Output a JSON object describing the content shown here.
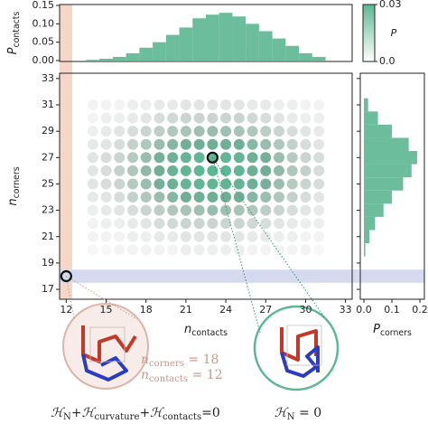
{
  "chart_data": [
    {
      "type": "histogram",
      "ylabel": {
        "symbol": "P",
        "sub": "contacts"
      },
      "bins": [
        13.5,
        14.5,
        15.5,
        16.5,
        17.5,
        18.5,
        19.5,
        20.5,
        21.5,
        22.5,
        23.5,
        24.5,
        25.5,
        26.5,
        27.5,
        28.5,
        29.5,
        30.5,
        31.5
      ],
      "values": [
        0.002,
        0.005,
        0.01,
        0.02,
        0.035,
        0.05,
        0.07,
        0.09,
        0.115,
        0.125,
        0.13,
        0.12,
        0.1,
        0.08,
        0.06,
        0.04,
        0.02,
        0.01
      ],
      "color": "#6cbd9c",
      "xlim": [
        11.5,
        33.5
      ],
      "ylim": [
        0,
        0.15
      ],
      "yticks": [
        {
          "value": 0,
          "label": "0.00"
        },
        0.05,
        {
          "value": 0.1,
          "label": "0.10"
        },
        0.15
      ]
    },
    {
      "type": "heatmap",
      "x": [
        14,
        15,
        16,
        17,
        18,
        19,
        20,
        21,
        22,
        23,
        24,
        25,
        26,
        27,
        28,
        29,
        30,
        31
      ],
      "y": [
        20,
        21,
        22,
        23,
        24,
        25,
        26,
        27,
        28,
        29,
        30,
        31
      ],
      "z": [
        [
          0.0,
          0.0,
          0.001,
          0.001,
          0.001,
          0.001,
          0.001,
          0.002,
          0.002,
          0.002,
          0.002,
          0.002,
          0.001,
          0.001,
          0.001,
          0.001,
          0.001,
          0.0
        ],
        [
          0.001,
          0.001,
          0.001,
          0.002,
          0.002,
          0.003,
          0.003,
          0.004,
          0.004,
          0.004,
          0.004,
          0.004,
          0.003,
          0.003,
          0.002,
          0.002,
          0.001,
          0.001
        ],
        [
          0.001,
          0.002,
          0.002,
          0.003,
          0.004,
          0.006,
          0.007,
          0.008,
          0.008,
          0.008,
          0.008,
          0.008,
          0.007,
          0.006,
          0.004,
          0.003,
          0.002,
          0.002
        ],
        [
          0.002,
          0.003,
          0.004,
          0.006,
          0.008,
          0.01,
          0.012,
          0.013,
          0.014,
          0.015,
          0.014,
          0.013,
          0.012,
          0.01,
          0.008,
          0.006,
          0.004,
          0.003
        ],
        [
          0.003,
          0.004,
          0.006,
          0.009,
          0.012,
          0.015,
          0.017,
          0.02,
          0.021,
          0.022,
          0.021,
          0.02,
          0.017,
          0.015,
          0.012,
          0.009,
          0.006,
          0.004
        ],
        [
          0.004,
          0.006,
          0.008,
          0.011,
          0.015,
          0.019,
          0.022,
          0.025,
          0.027,
          0.028,
          0.027,
          0.025,
          0.022,
          0.019,
          0.015,
          0.011,
          0.008,
          0.006
        ],
        [
          0.004,
          0.006,
          0.009,
          0.012,
          0.016,
          0.02,
          0.024,
          0.027,
          0.029,
          0.03,
          0.029,
          0.027,
          0.024,
          0.02,
          0.016,
          0.012,
          0.009,
          0.006
        ],
        [
          0.004,
          0.006,
          0.008,
          0.011,
          0.015,
          0.019,
          0.022,
          0.025,
          0.027,
          0.028,
          0.027,
          0.025,
          0.022,
          0.019,
          0.015,
          0.011,
          0.008,
          0.006
        ],
        [
          0.003,
          0.004,
          0.006,
          0.009,
          0.012,
          0.015,
          0.017,
          0.02,
          0.021,
          0.022,
          0.021,
          0.02,
          0.017,
          0.015,
          0.012,
          0.009,
          0.006,
          0.004
        ],
        [
          0.002,
          0.003,
          0.004,
          0.006,
          0.008,
          0.01,
          0.012,
          0.013,
          0.014,
          0.015,
          0.014,
          0.013,
          0.012,
          0.01,
          0.008,
          0.006,
          0.004,
          0.003
        ],
        [
          0.001,
          0.002,
          0.002,
          0.003,
          0.004,
          0.006,
          0.007,
          0.008,
          0.008,
          0.008,
          0.008,
          0.008,
          0.007,
          0.006,
          0.004,
          0.003,
          0.002,
          0.002
        ],
        [
          0.001,
          0.001,
          0.001,
          0.002,
          0.002,
          0.003,
          0.003,
          0.004,
          0.004,
          0.004,
          0.004,
          0.004,
          0.003,
          0.003,
          0.002,
          0.002,
          0.001,
          0.001
        ]
      ],
      "xlim": [
        11.5,
        33.5
      ],
      "ylim": [
        16.25,
        33.4
      ],
      "xticks": [
        12,
        15,
        18,
        21,
        24,
        27,
        30,
        33
      ],
      "yticks": [
        17,
        19,
        21,
        23,
        25,
        27,
        29,
        31,
        33
      ],
      "xlabel": {
        "symbol": "n",
        "sub": "contacts"
      },
      "ylabel": {
        "symbol": "n",
        "sub": "corners"
      },
      "cmap": [
        "#9b9b9b",
        "#5cb894"
      ],
      "colorbar": {
        "label": "P",
        "lim": [
          0,
          0.03
        ],
        "ticks": [
          {
            "value": 0,
            "label": "0.0"
          },
          0.03
        ],
        "colors": [
          "#ffffff",
          "#5cb894"
        ]
      },
      "bands": [
        {
          "axis": "x",
          "range": [
            11.5,
            12.45
          ],
          "color": "#f6d6c6"
        },
        {
          "axis": "y",
          "range": [
            17.5,
            18.5
          ],
          "color": "#d5daef"
        }
      ],
      "highlights": [
        {
          "x": 12,
          "y": 18
        },
        {
          "x": 23,
          "y": 27
        }
      ],
      "annotations": [
        {
          "symbol": "n",
          "sub": "corners",
          "rest": " = 18",
          "color": "#c49a8e"
        },
        {
          "symbol": "n",
          "sub": "contacts",
          "rest": " = 12",
          "color": "#c49a8e"
        }
      ],
      "equations": [
        {
          "terms": [
            {
              "symbol": "ℋ",
              "sub": "N"
            },
            {
              "symbol": "ℋ",
              "sub": "curvature"
            },
            {
              "symbol": "ℋ",
              "sub": "contacts"
            }
          ],
          "operator": "+",
          "rhs": "=0"
        },
        {
          "terms": [
            {
              "symbol": "ℋ",
              "sub": "N"
            }
          ],
          "rhs": " = 0"
        }
      ]
    },
    {
      "type": "histogram",
      "orientation": "horizontal",
      "xlabel": {
        "symbol": "P",
        "sub": "corners"
      },
      "bins": [
        19.5,
        20.5,
        21.5,
        22.5,
        23.5,
        24.5,
        25.5,
        26.5,
        27.5,
        28.5,
        29.5,
        30.5,
        31.5
      ],
      "values": [
        0.005,
        0.02,
        0.04,
        0.07,
        0.1,
        0.14,
        0.17,
        0.19,
        0.16,
        0.1,
        0.05,
        0.015
      ],
      "color": "#6cbd9c",
      "xlim": [
        -0.013,
        0.216
      ],
      "ylim": [
        16.25,
        33.4
      ],
      "xticks": [
        {
          "value": 0,
          "label": "0.0"
        },
        0.1,
        0.2
      ]
    }
  ]
}
